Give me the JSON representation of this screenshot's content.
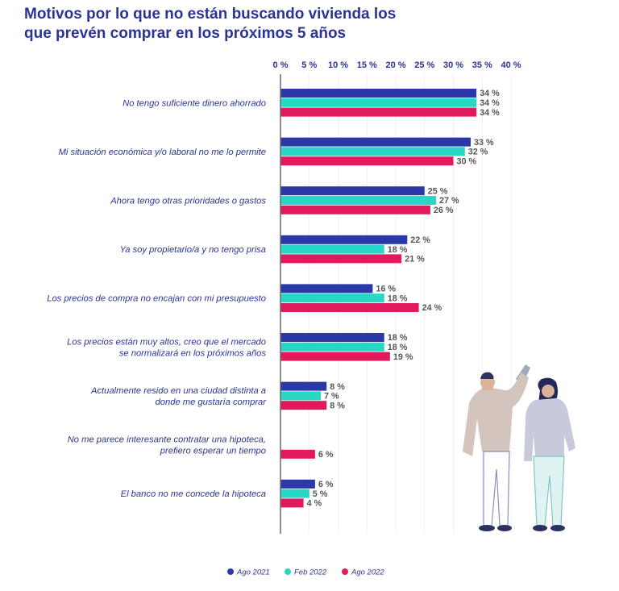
{
  "title_lines": [
    "Motivos por lo que no están buscando vivienda los",
    "que prevén comprar en los próximos 5 años"
  ],
  "colors": {
    "ago2021": "#2c37a8",
    "feb2022": "#28d6c6",
    "ago2022": "#e21a5d",
    "axis": "#6a6a6a",
    "text": "#2b3494"
  },
  "chart_data": {
    "type": "bar",
    "orientation": "horizontal",
    "title": "Motivos por lo que no están buscando vivienda los que prevén comprar en los próximos 5 años",
    "xlabel": "",
    "ylabel": "",
    "xlim": [
      0,
      40
    ],
    "ticks": [
      0,
      5,
      10,
      15,
      20,
      25,
      30,
      35,
      40
    ],
    "tick_suffix": " %",
    "grid": false,
    "legend_position": "bottom",
    "categories": [
      [
        "No tengo suficiente dinero ahorrado"
      ],
      [
        "Mi situación económica y/o laboral no me lo permite"
      ],
      [
        "Ahora tengo otras prioridades o gastos"
      ],
      [
        "Ya soy propietario/a y no tengo prisa"
      ],
      [
        "Los precios de compra no encajan con mi presupuesto"
      ],
      [
        "Los precios están muy altos, creo que el mercado",
        "se normalizará en los próximos años"
      ],
      [
        "Actualmente resido en una ciudad distinta a",
        "donde me gustaría comprar"
      ],
      [
        "No me parece interesante contratar una hipoteca,",
        "prefiero esperar un tiempo"
      ],
      [
        "El banco no me concede la hipoteca"
      ]
    ],
    "series": [
      {
        "name": "Ago 2021",
        "color": "#2c37a8",
        "values": [
          34,
          33,
          25,
          22,
          16,
          18,
          8,
          null,
          6
        ]
      },
      {
        "name": "Feb 2022",
        "color": "#28d6c6",
        "values": [
          34,
          32,
          27,
          18,
          18,
          18,
          7,
          null,
          5
        ]
      },
      {
        "name": "Ago 2022",
        "color": "#e21a5d",
        "values": [
          34,
          30,
          26,
          21,
          24,
          19,
          8,
          6,
          4
        ]
      }
    ]
  }
}
